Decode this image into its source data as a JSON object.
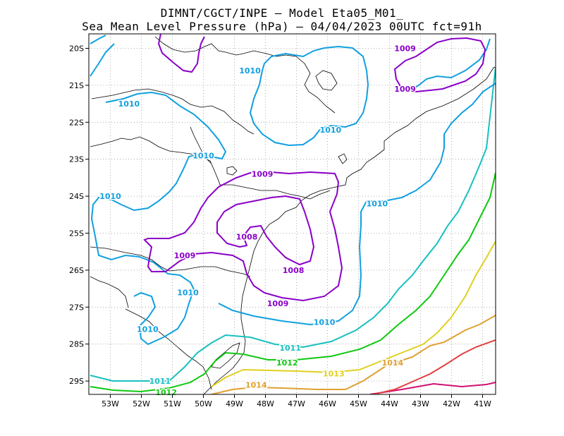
{
  "title_line1": "DIMNT/CGCT/INPE –  Model Eta05_M01_",
  "title_line2": "Sea Mean Level Pressure (hPa) – 04/04/2023 00UTC fct=91h",
  "colors": {
    "1008": "#8a00c8",
    "1009": "#8a00c8",
    "1010": "#10a0e0",
    "1011": "#18c0c0",
    "1012": "#10c810",
    "1013": "#e0d020",
    "1014": "#e0a030",
    "1015": "#e04040",
    "1016": "#d01070"
  },
  "map": {
    "lon_ticks": [
      "53W",
      "52W",
      "51W",
      "50W",
      "49W",
      "48W",
      "47W",
      "46W",
      "45W",
      "44W",
      "43W",
      "42W",
      "41W"
    ],
    "lat_ticks": [
      "20S",
      "21S",
      "22S",
      "23S",
      "24S",
      "25S",
      "26S",
      "27S",
      "28S",
      "29S"
    ],
    "contour_labels": [
      {
        "text": "1009",
        "level": "1009",
        "lon": -43.5,
        "lat": -20.0
      },
      {
        "text": "1009",
        "level": "1009",
        "lon": -43.5,
        "lat": -21.1
      },
      {
        "text": "1010",
        "level": "1010",
        "lon": -48.5,
        "lat": -20.6
      },
      {
        "text": "1010",
        "level": "1010",
        "lon": -52.4,
        "lat": -21.5
      },
      {
        "text": "1010",
        "level": "1010",
        "lon": -45.9,
        "lat": -22.2
      },
      {
        "text": "1010",
        "level": "1010",
        "lon": -50.0,
        "lat": -22.9
      },
      {
        "text": "1009",
        "level": "1009",
        "lon": -48.1,
        "lat": -23.4
      },
      {
        "text": "1010",
        "level": "1010",
        "lon": -53.0,
        "lat": -24.0
      },
      {
        "text": "1010",
        "level": "1010",
        "lon": -44.4,
        "lat": -24.2
      },
      {
        "text": "1008",
        "level": "1008",
        "lon": -48.6,
        "lat": -25.1
      },
      {
        "text": "1009",
        "level": "1009",
        "lon": -50.6,
        "lat": -25.6
      },
      {
        "text": "1008",
        "level": "1008",
        "lon": -47.1,
        "lat": -26.0
      },
      {
        "text": "1010",
        "level": "1010",
        "lon": -50.5,
        "lat": -26.6
      },
      {
        "text": "1009",
        "level": "1009",
        "lon": -47.6,
        "lat": -26.9
      },
      {
        "text": "1010",
        "level": "1010",
        "lon": -46.1,
        "lat": -27.4
      },
      {
        "text": "1010",
        "level": "1010",
        "lon": -51.8,
        "lat": -27.6
      },
      {
        "text": "1011",
        "level": "1011",
        "lon": -47.2,
        "lat": -28.1
      },
      {
        "text": "1012",
        "level": "1012",
        "lon": -47.3,
        "lat": -28.5
      },
      {
        "text": "1013",
        "level": "1013",
        "lon": -45.8,
        "lat": -28.8
      },
      {
        "text": "1014",
        "level": "1014",
        "lon": -43.9,
        "lat": -28.5
      },
      {
        "text": "1011",
        "level": "1011",
        "lon": -51.4,
        "lat": -29.0
      },
      {
        "text": "1014",
        "level": "1014",
        "lon": -48.3,
        "lat": -29.1
      },
      {
        "text": "1012",
        "level": "1012",
        "lon": -51.2,
        "lat": -29.3
      }
    ]
  }
}
